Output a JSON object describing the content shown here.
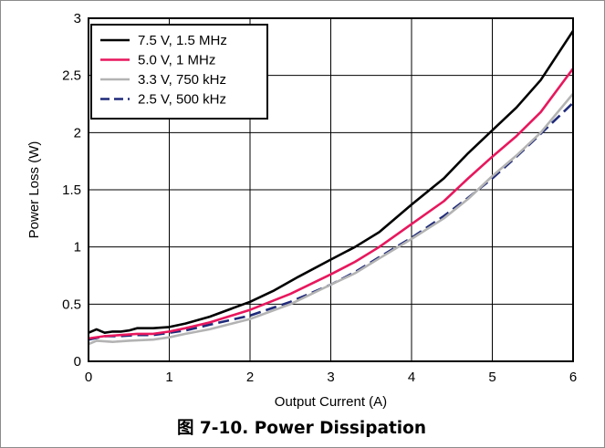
{
  "figure": {
    "caption": "图 7-10. Power Dissipation"
  },
  "chart_data": {
    "type": "line",
    "title": "",
    "xlabel": "Output Current (A)",
    "ylabel": "Power Loss (W)",
    "xlim": [
      0,
      6
    ],
    "ylim": [
      0,
      3
    ],
    "xticks": [
      0,
      1,
      2,
      3,
      4,
      5,
      6
    ],
    "yticks": [
      0,
      0.5,
      1,
      1.5,
      2,
      2.5,
      3
    ],
    "ytick_labels": [
      "0",
      "0.5",
      "1",
      "1.5",
      "2",
      "2.5",
      "3"
    ],
    "grid": true,
    "legend_position": "top-left",
    "series": [
      {
        "name": "7.5 V, 1.5 MHz",
        "color": "#000000",
        "dash": "solid",
        "points": [
          [
            0,
            0.25
          ],
          [
            0.1,
            0.28
          ],
          [
            0.2,
            0.25
          ],
          [
            0.3,
            0.26
          ],
          [
            0.4,
            0.26
          ],
          [
            0.5,
            0.27
          ],
          [
            0.6,
            0.29
          ],
          [
            0.8,
            0.29
          ],
          [
            1.0,
            0.3
          ],
          [
            1.2,
            0.33
          ],
          [
            1.5,
            0.39
          ],
          [
            2.0,
            0.52
          ],
          [
            2.3,
            0.62
          ],
          [
            2.6,
            0.74
          ],
          [
            3.0,
            0.89
          ],
          [
            3.3,
            1.0
          ],
          [
            3.6,
            1.13
          ],
          [
            4.0,
            1.37
          ],
          [
            4.4,
            1.6
          ],
          [
            4.7,
            1.82
          ],
          [
            5.0,
            2.02
          ],
          [
            5.3,
            2.22
          ],
          [
            5.6,
            2.46
          ],
          [
            6.0,
            2.89
          ]
        ]
      },
      {
        "name": "5.0 V, 1 MHz",
        "color": "#e8175d",
        "dash": "solid",
        "points": [
          [
            0,
            0.2
          ],
          [
            0.2,
            0.22
          ],
          [
            0.4,
            0.23
          ],
          [
            0.6,
            0.24
          ],
          [
            0.8,
            0.24
          ],
          [
            1.0,
            0.26
          ],
          [
            1.2,
            0.29
          ],
          [
            1.5,
            0.34
          ],
          [
            2.0,
            0.45
          ],
          [
            2.5,
            0.59
          ],
          [
            3.0,
            0.76
          ],
          [
            3.3,
            0.87
          ],
          [
            3.6,
            1.0
          ],
          [
            4.0,
            1.2
          ],
          [
            4.4,
            1.4
          ],
          [
            4.7,
            1.6
          ],
          [
            5.0,
            1.79
          ],
          [
            5.3,
            1.97
          ],
          [
            5.6,
            2.18
          ],
          [
            6.0,
            2.56
          ]
        ]
      },
      {
        "name": "3.3 V, 750 kHz",
        "color": "#b3b3b3",
        "dash": "solid",
        "points": [
          [
            0,
            0.15
          ],
          [
            0.1,
            0.18
          ],
          [
            0.3,
            0.17
          ],
          [
            0.5,
            0.18
          ],
          [
            0.8,
            0.19
          ],
          [
            1.0,
            0.21
          ],
          [
            1.2,
            0.24
          ],
          [
            1.5,
            0.28
          ],
          [
            2.0,
            0.37
          ],
          [
            2.5,
            0.5
          ],
          [
            3.0,
            0.67
          ],
          [
            3.3,
            0.77
          ],
          [
            3.6,
            0.9
          ],
          [
            4.0,
            1.07
          ],
          [
            4.4,
            1.25
          ],
          [
            4.7,
            1.42
          ],
          [
            5.0,
            1.62
          ],
          [
            5.3,
            1.8
          ],
          [
            5.6,
            2.0
          ],
          [
            6.0,
            2.34
          ]
        ]
      },
      {
        "name": "2.5 V, 500 kHz",
        "color": "#1f2a7a",
        "dash": "dashed",
        "points": [
          [
            0,
            0.19
          ],
          [
            0.2,
            0.22
          ],
          [
            0.4,
            0.22
          ],
          [
            0.6,
            0.23
          ],
          [
            0.8,
            0.23
          ],
          [
            1.0,
            0.25
          ],
          [
            1.2,
            0.27
          ],
          [
            1.5,
            0.32
          ],
          [
            2.0,
            0.4
          ],
          [
            2.5,
            0.52
          ],
          [
            3.0,
            0.67
          ],
          [
            3.3,
            0.78
          ],
          [
            3.6,
            0.91
          ],
          [
            4.0,
            1.08
          ],
          [
            4.4,
            1.27
          ],
          [
            4.7,
            1.43
          ],
          [
            5.0,
            1.6
          ],
          [
            5.3,
            1.79
          ],
          [
            5.6,
            1.99
          ],
          [
            6.0,
            2.26
          ]
        ]
      }
    ]
  }
}
